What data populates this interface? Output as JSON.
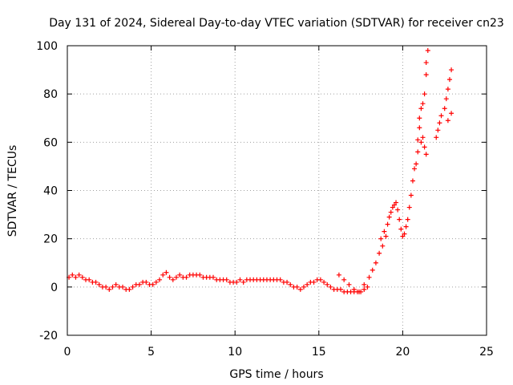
{
  "chart_data": {
    "type": "scatter",
    "title": "Day 131 of 2024, Sidereal Day-to-day VTEC variation (SDTVAR) for receiver cn23",
    "xlabel": "GPS time / hours",
    "ylabel": "SDTVAR / TECUs",
    "xlim": [
      0,
      25
    ],
    "ylim": [
      -20,
      100
    ],
    "xticks": [
      0,
      5,
      10,
      15,
      20,
      25
    ],
    "yticks": [
      -20,
      0,
      20,
      40,
      60,
      80,
      100
    ],
    "grid": true,
    "marker": "plus",
    "color": "#ff0000",
    "series": [
      {
        "name": "SDTVAR",
        "points": [
          [
            0.1,
            4
          ],
          [
            0.3,
            5
          ],
          [
            0.5,
            4
          ],
          [
            0.7,
            5
          ],
          [
            0.9,
            4
          ],
          [
            1.1,
            3
          ],
          [
            1.3,
            3
          ],
          [
            1.5,
            2
          ],
          [
            1.7,
            2
          ],
          [
            1.9,
            1
          ],
          [
            2.1,
            0
          ],
          [
            2.3,
            0
          ],
          [
            2.5,
            -1
          ],
          [
            2.7,
            0
          ],
          [
            2.9,
            1
          ],
          [
            3.1,
            0
          ],
          [
            3.3,
            0
          ],
          [
            3.5,
            -1
          ],
          [
            3.7,
            -1
          ],
          [
            3.9,
            0
          ],
          [
            4.1,
            1
          ],
          [
            4.3,
            1
          ],
          [
            4.5,
            2
          ],
          [
            4.7,
            2
          ],
          [
            4.9,
            1
          ],
          [
            5.1,
            1
          ],
          [
            5.3,
            2
          ],
          [
            5.5,
            3
          ],
          [
            5.7,
            5
          ],
          [
            5.9,
            6
          ],
          [
            6.1,
            4
          ],
          [
            6.3,
            3
          ],
          [
            6.5,
            4
          ],
          [
            6.7,
            5
          ],
          [
            6.9,
            4
          ],
          [
            7.1,
            4
          ],
          [
            7.3,
            5
          ],
          [
            7.5,
            5
          ],
          [
            7.7,
            5
          ],
          [
            7.9,
            5
          ],
          [
            8.1,
            4
          ],
          [
            8.3,
            4
          ],
          [
            8.5,
            4
          ],
          [
            8.7,
            4
          ],
          [
            8.9,
            3
          ],
          [
            9.1,
            3
          ],
          [
            9.3,
            3
          ],
          [
            9.5,
            3
          ],
          [
            9.7,
            2
          ],
          [
            9.9,
            2
          ],
          [
            10.1,
            2
          ],
          [
            10.3,
            3
          ],
          [
            10.5,
            2
          ],
          [
            10.7,
            3
          ],
          [
            10.9,
            3
          ],
          [
            11.1,
            3
          ],
          [
            11.3,
            3
          ],
          [
            11.5,
            3
          ],
          [
            11.7,
            3
          ],
          [
            11.9,
            3
          ],
          [
            12.1,
            3
          ],
          [
            12.3,
            3
          ],
          [
            12.5,
            3
          ],
          [
            12.7,
            3
          ],
          [
            12.9,
            2
          ],
          [
            13.1,
            2
          ],
          [
            13.3,
            1
          ],
          [
            13.5,
            0
          ],
          [
            13.7,
            0
          ],
          [
            13.9,
            -1
          ],
          [
            14.1,
            0
          ],
          [
            14.3,
            1
          ],
          [
            14.5,
            2
          ],
          [
            14.7,
            2
          ],
          [
            14.9,
            3
          ],
          [
            15.1,
            3
          ],
          [
            15.3,
            2
          ],
          [
            15.5,
            1
          ],
          [
            15.7,
            0
          ],
          [
            15.9,
            -1
          ],
          [
            16.1,
            -1
          ],
          [
            16.3,
            -1
          ],
          [
            16.5,
            -2
          ],
          [
            16.7,
            -2
          ],
          [
            16.9,
            -2
          ],
          [
            17.1,
            -2
          ],
          [
            17.3,
            -2
          ],
          [
            17.5,
            -2
          ],
          [
            17.7,
            -1
          ],
          [
            17.9,
            0
          ],
          [
            16.2,
            5
          ],
          [
            16.5,
            3
          ],
          [
            16.8,
            1
          ],
          [
            17.1,
            -1
          ],
          [
            17.4,
            -2
          ],
          [
            17.7,
            1
          ],
          [
            18.0,
            4
          ],
          [
            18.2,
            7
          ],
          [
            18.4,
            10
          ],
          [
            18.6,
            14
          ],
          [
            18.8,
            17
          ],
          [
            19.0,
            21
          ],
          [
            18.7,
            20
          ],
          [
            18.9,
            23
          ],
          [
            19.1,
            26
          ],
          [
            19.2,
            29
          ],
          [
            19.3,
            31
          ],
          [
            19.4,
            33
          ],
          [
            19.5,
            34
          ],
          [
            19.6,
            35
          ],
          [
            19.7,
            32
          ],
          [
            19.8,
            28
          ],
          [
            19.9,
            24
          ],
          [
            20.0,
            21
          ],
          [
            20.1,
            22
          ],
          [
            20.2,
            25
          ],
          [
            20.3,
            28
          ],
          [
            20.4,
            33
          ],
          [
            20.5,
            38
          ],
          [
            20.6,
            44
          ],
          [
            20.7,
            49
          ],
          [
            20.8,
            51
          ],
          [
            20.9,
            56
          ],
          [
            20.9,
            61
          ],
          [
            21.0,
            66
          ],
          [
            21.0,
            70
          ],
          [
            21.1,
            60
          ],
          [
            21.2,
            62
          ],
          [
            21.3,
            58
          ],
          [
            21.4,
            55
          ],
          [
            21.1,
            74
          ],
          [
            21.2,
            76
          ],
          [
            21.3,
            80
          ],
          [
            21.4,
            88
          ],
          [
            21.4,
            93
          ],
          [
            21.5,
            98
          ],
          [
            22.0,
            62
          ],
          [
            22.1,
            65
          ],
          [
            22.2,
            68
          ],
          [
            22.3,
            71
          ],
          [
            22.5,
            74
          ],
          [
            22.6,
            78
          ],
          [
            22.7,
            82
          ],
          [
            22.8,
            86
          ],
          [
            22.9,
            90
          ],
          [
            22.7,
            69
          ],
          [
            22.9,
            72
          ]
        ]
      }
    ]
  }
}
